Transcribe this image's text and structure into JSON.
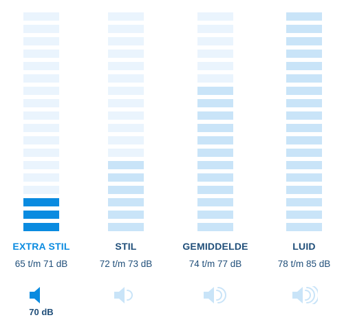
{
  "bars_per_meter": 18,
  "colors": {
    "active": "#0a8be0",
    "range": "#c9e4f8",
    "empty": "#eaf4fd",
    "label_active": "#0a8be0",
    "label_muted": "#1f4e79",
    "icon_active": "#0a8be0",
    "icon_muted": "#c9e4f8"
  },
  "levels": [
    {
      "label": "EXTRA STIL",
      "range": "65 t/m 71 dB",
      "filled_bars": 3,
      "selected": true,
      "icon": "speaker-muted-icon",
      "waves": 0
    },
    {
      "label": "STIL",
      "range": "72 t/m 73 dB",
      "filled_bars": 6,
      "selected": false,
      "icon": "speaker-low-icon",
      "waves": 1
    },
    {
      "label": "GEMIDDELDE",
      "range": "74 t/m 77 dB",
      "filled_bars": 12,
      "selected": false,
      "icon": "speaker-medium-icon",
      "waves": 2
    },
    {
      "label": "LUID",
      "range": "78 t/m 85 dB",
      "filled_bars": 18,
      "selected": false,
      "icon": "speaker-high-icon",
      "waves": 3
    }
  ],
  "current_value": "70 dB"
}
